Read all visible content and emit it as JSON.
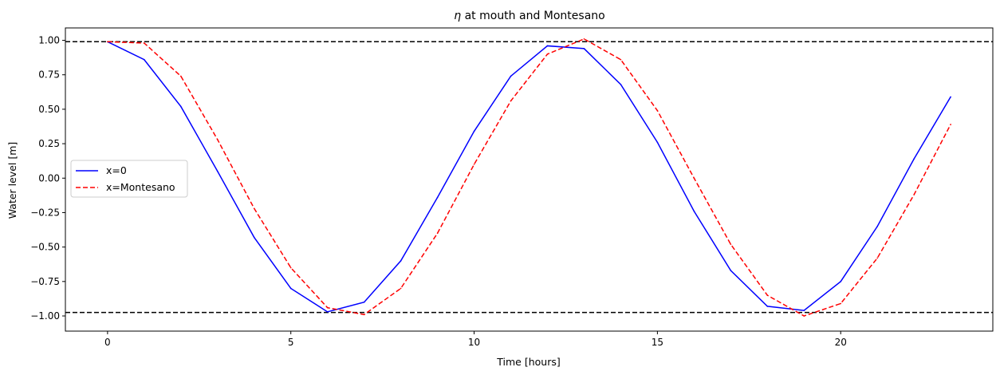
{
  "chart_data": {
    "type": "line",
    "title_symbol": "η",
    "title_rest": " at mouth and Montesano",
    "xlabel": "Time [hours]",
    "ylabel": "Water level [m]",
    "xlim": [
      -1.15,
      24.15
    ],
    "ylim": [
      -1.11,
      1.09
    ],
    "xticks": [
      0,
      5,
      10,
      15,
      20
    ],
    "yticks": [
      1.0,
      0.75,
      0.5,
      0.25,
      0.0,
      -0.25,
      -0.5,
      -0.75,
      -1.0
    ],
    "ytick_labels": [
      "1.00",
      "0.75",
      "0.50",
      "0.25",
      "0.00",
      "−0.25",
      "−0.50",
      "−0.75",
      "−1.00"
    ],
    "legend_position": "center-left",
    "grid": false,
    "x": [
      0,
      1,
      2,
      3,
      4,
      5,
      6,
      7,
      8,
      9,
      10,
      11,
      12,
      13,
      14,
      15,
      16,
      17,
      18,
      19,
      20,
      21,
      22,
      23
    ],
    "series": [
      {
        "name": "x=0",
        "color": "#0000ff",
        "style": "solid",
        "values": [
          0.99,
          0.86,
          0.52,
          0.05,
          -0.43,
          -0.8,
          -0.97,
          -0.9,
          -0.6,
          -0.14,
          0.34,
          0.74,
          0.96,
          0.94,
          0.68,
          0.26,
          -0.24,
          -0.67,
          -0.93,
          -0.96,
          -0.75,
          -0.35,
          0.14,
          0.59
        ]
      },
      {
        "name": "x=Montesano",
        "color": "#ff0000",
        "style": "dashed",
        "values": [
          0.99,
          0.98,
          0.74,
          0.28,
          -0.22,
          -0.65,
          -0.94,
          -0.99,
          -0.8,
          -0.4,
          0.1,
          0.56,
          0.9,
          1.01,
          0.86,
          0.49,
          0.0,
          -0.48,
          -0.85,
          -1.0,
          -0.91,
          -0.58,
          -0.12,
          0.39
        ]
      }
    ],
    "reference_lines": [
      {
        "y": 0.99,
        "color": "#000000",
        "style": "dashed"
      },
      {
        "y": -0.975,
        "color": "#000000",
        "style": "dashed"
      }
    ]
  }
}
